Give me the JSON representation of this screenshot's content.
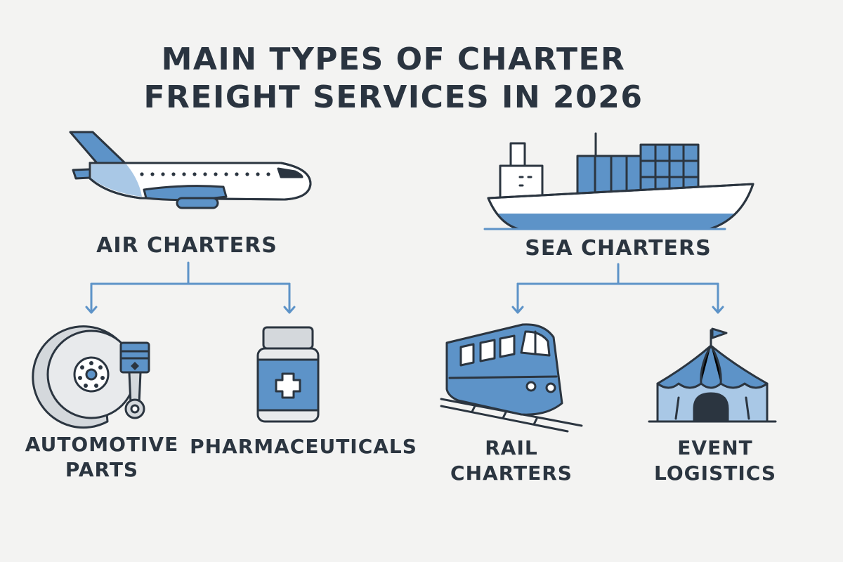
{
  "title": {
    "line1": "MAIN TYPES OF CHARTER",
    "line2": "FREIGHT SERVICES IN 2026"
  },
  "branches": [
    {
      "label": "AIR CHARTERS",
      "icon": "airplane-icon",
      "children": [
        {
          "line1": "AUTOMOTIVE",
          "line2": "PARTS",
          "icon": "brake-disc-piston-icon"
        },
        {
          "line1": "PHARMACEUTICALS",
          "line2": "",
          "icon": "medicine-bottle-icon"
        }
      ]
    },
    {
      "label": "SEA CHARTERS",
      "icon": "cargo-ship-icon",
      "children": [
        {
          "line1": "RAIL",
          "line2": "CHARTERS",
          "icon": "train-icon"
        },
        {
          "line1": "EVENT",
          "line2": "LOGISTICS",
          "icon": "tent-icon"
        }
      ]
    }
  ],
  "colors": {
    "accent": "#5d93c8",
    "accent_light": "#a9c8e6",
    "ink": "#2b3540",
    "background": "#f3f3f2"
  }
}
